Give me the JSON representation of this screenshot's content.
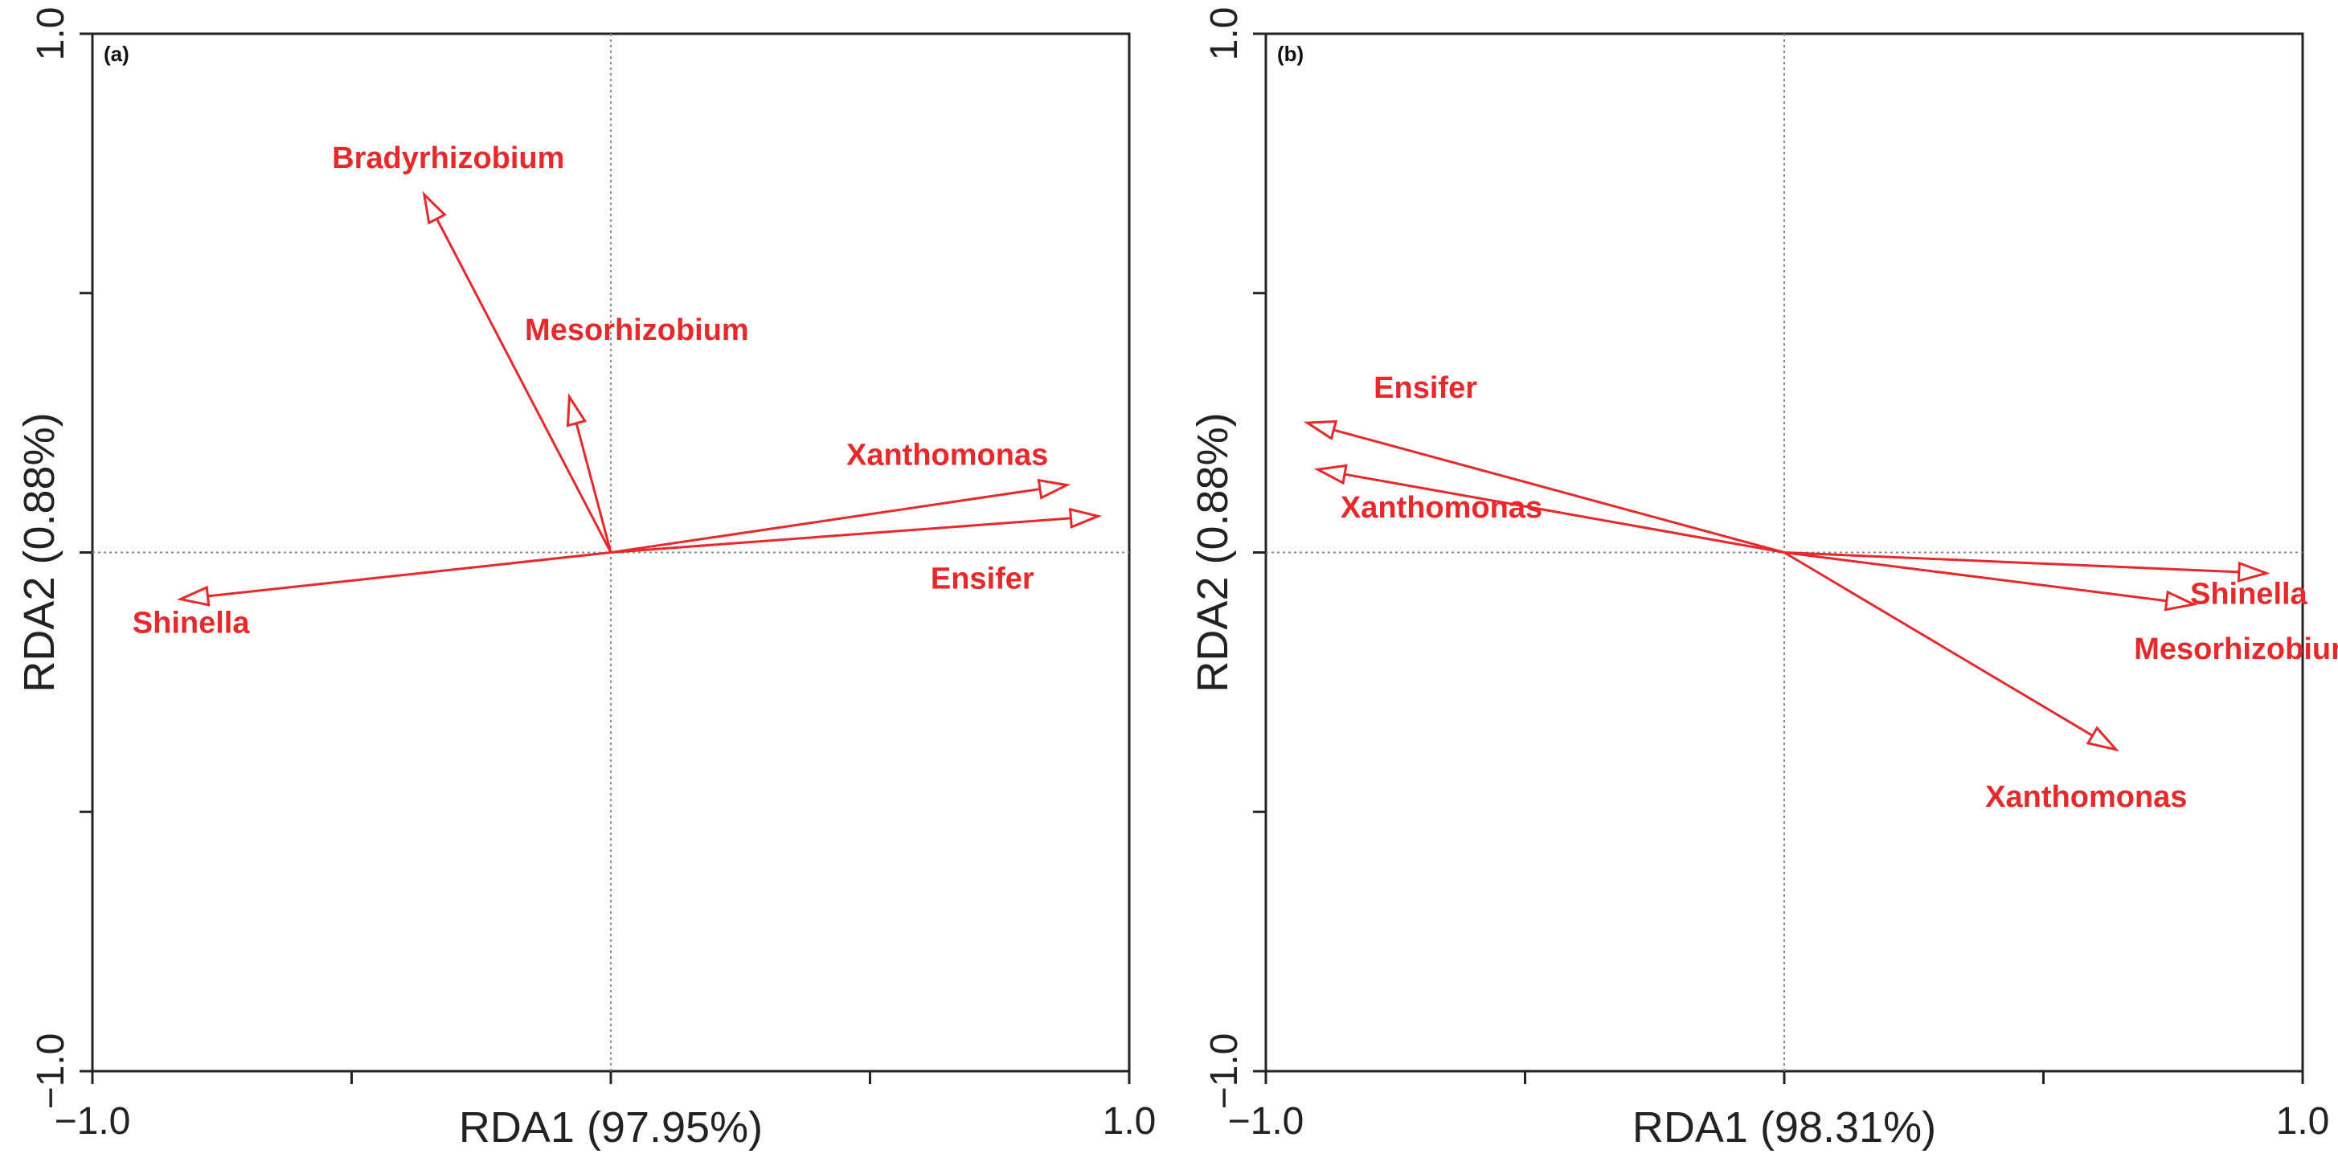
{
  "colors": {
    "vector": "#e8292b",
    "axis": "#222222",
    "zero_line": "#888888"
  },
  "chart_data": [
    {
      "type": "biplot",
      "panel_label": "(a)",
      "xlabel": "RDA1 (97.95%)",
      "ylabel": "RDA2 (0.88%)",
      "xlim": [
        -1.0,
        1.0
      ],
      "ylim": [
        -1.0,
        1.0
      ],
      "x_tick_labels": [
        "−1.0",
        "1.0"
      ],
      "y_tick_labels": [
        "−1.0",
        "1.0"
      ],
      "grid": false,
      "vectors": [
        {
          "name": "Bradyrhizobium",
          "x": -0.36,
          "y": 0.69
        },
        {
          "name": "Mesorhizobium",
          "x": -0.08,
          "y": 0.3
        },
        {
          "name": "Xanthomonas",
          "x": 0.88,
          "y": 0.13
        },
        {
          "name": "Ensifer",
          "x": 0.94,
          "y": 0.07
        },
        {
          "name": "Shinella",
          "x": -0.83,
          "y": -0.09
        }
      ]
    },
    {
      "type": "biplot",
      "panel_label": "(b)",
      "xlabel": "RDA1 (98.31%)",
      "ylabel": "RDA2 (0.88%)",
      "xlim": [
        -1.0,
        1.0
      ],
      "ylim": [
        -1.0,
        1.0
      ],
      "x_tick_labels": [
        "−1.0",
        "1.0"
      ],
      "y_tick_labels": [
        "−1.0",
        "1.0"
      ],
      "grid": false,
      "vectors": [
        {
          "name": "Ensifer",
          "x": -0.92,
          "y": 0.25
        },
        {
          "name": "Xanthomonas",
          "x": -0.9,
          "y": 0.16
        },
        {
          "name": "Shinella",
          "x": 0.93,
          "y": -0.04
        },
        {
          "name": "Mesorhizobium",
          "x": 0.79,
          "y": -0.1
        },
        {
          "name": "Xanthomonas",
          "x": 0.64,
          "y": -0.38
        }
      ]
    }
  ]
}
